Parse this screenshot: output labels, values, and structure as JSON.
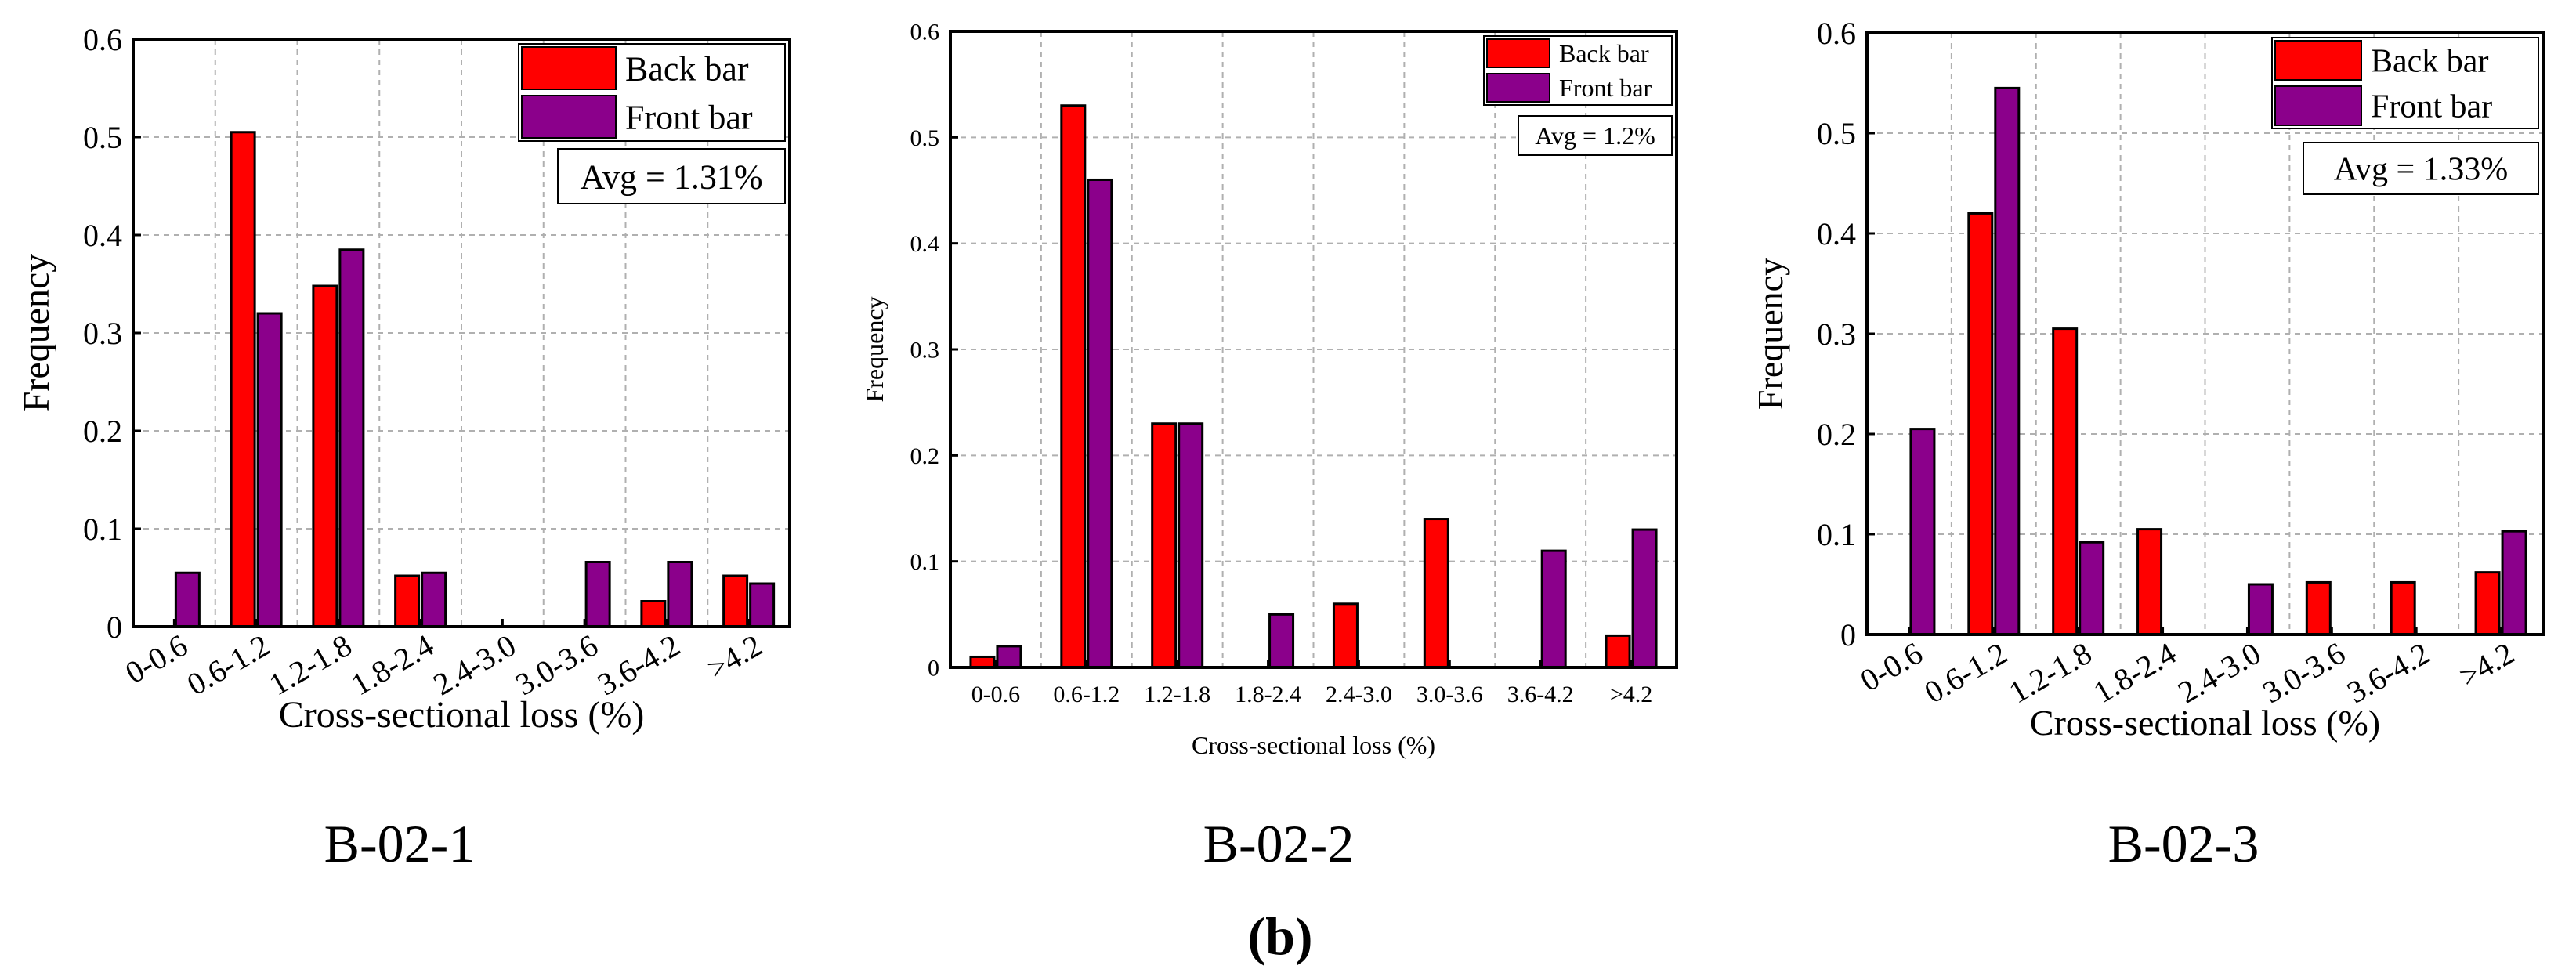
{
  "figure_label": "(b)",
  "colors": {
    "back_bar": "#ff0000",
    "front_bar": "#8b008b",
    "grid": "#b0b0b0",
    "axis": "#000000"
  },
  "chart_data": [
    {
      "type": "bar",
      "caption": "B-02-1",
      "categories": [
        "0-0.6",
        "0.6-1.2",
        "1.2-1.8",
        "1.8-2.4",
        "2.4-3.0",
        "3.0-3.6",
        "3.6-4.2",
        ">4.2"
      ],
      "series": [
        {
          "name": "Back bar",
          "values": [
            0,
            0.505,
            0.348,
            0.052,
            0,
            0,
            0.026,
            0.052
          ]
        },
        {
          "name": "Front bar",
          "values": [
            0.055,
            0.32,
            0.385,
            0.055,
            0,
            0.066,
            0.066,
            0.044
          ]
        }
      ],
      "xlabel": "Cross-sectional loss (%)",
      "ylabel": "Frequency",
      "ylim": [
        0,
        0.6
      ],
      "yticks": [
        "0",
        "0.1",
        "0.2",
        "0.3",
        "0.4",
        "0.5",
        "0.6"
      ],
      "annotation": "Avg = 1.31%",
      "grid": true,
      "legend": "top-right",
      "rotated_ticks": true
    },
    {
      "type": "bar",
      "caption": "B-02-2",
      "categories": [
        "0-0.6",
        "0.6-1.2",
        "1.2-1.8",
        "1.8-2.4",
        "2.4-3.0",
        "3.0-3.6",
        "3.6-4.2",
        ">4.2"
      ],
      "series": [
        {
          "name": "Back bar",
          "values": [
            0.01,
            0.53,
            0.23,
            0,
            0.06,
            0.14,
            0,
            0.03
          ]
        },
        {
          "name": "Front bar",
          "values": [
            0.02,
            0.46,
            0.23,
            0.05,
            0,
            0,
            0.11,
            0.13
          ]
        }
      ],
      "xlabel": "Cross-sectional loss (%)",
      "ylabel": "Frequency",
      "ylim": [
        0,
        0.6
      ],
      "yticks": [
        "0",
        "0.1",
        "0.2",
        "0.3",
        "0.4",
        "0.5",
        "0.6"
      ],
      "annotation": "Avg = 1.2%",
      "grid": true,
      "legend": "top-right",
      "rotated_ticks": false
    },
    {
      "type": "bar",
      "caption": "B-02-3",
      "categories": [
        "0-0.6",
        "0.6-1.2",
        "1.2-1.8",
        "1.8-2.4",
        "2.4-3.0",
        "3.0-3.6",
        "3.6-4.2",
        ">4.2"
      ],
      "series": [
        {
          "name": "Back bar",
          "values": [
            0,
            0.42,
            0.305,
            0.105,
            0,
            0.052,
            0.052,
            0.062
          ]
        },
        {
          "name": "Front bar",
          "values": [
            0.205,
            0.545,
            0.092,
            0,
            0.05,
            0,
            0,
            0.103
          ]
        }
      ],
      "xlabel": "Cross-sectional loss (%)",
      "ylabel": "Frequency",
      "ylim": [
        0,
        0.6
      ],
      "yticks": [
        "0",
        "0.1",
        "0.2",
        "0.3",
        "0.4",
        "0.5",
        "0.6"
      ],
      "annotation": "Avg = 1.33%",
      "grid": true,
      "legend": "top-right",
      "rotated_ticks": true
    }
  ]
}
